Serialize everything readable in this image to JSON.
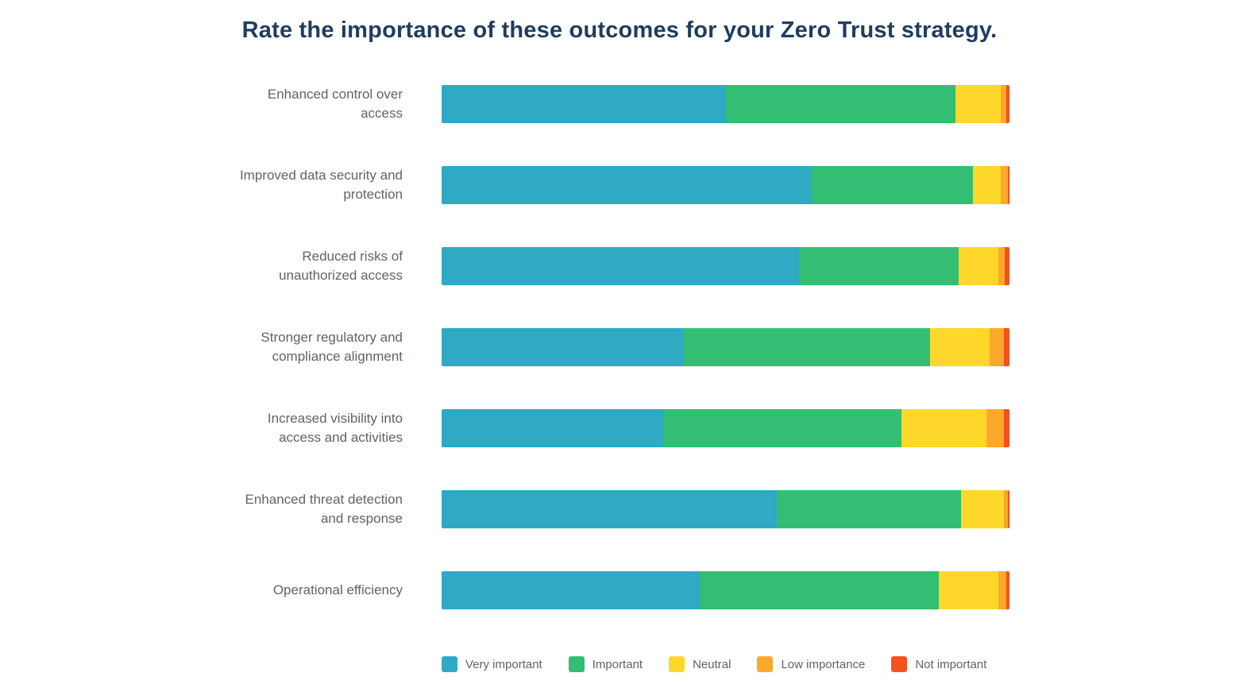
{
  "title": "Rate the importance of these outcomes for your Zero Trust strategy.",
  "chart_data": {
    "type": "bar",
    "variant": "horizontal-stacked",
    "unit": "percent-of-respondents",
    "title": "Rate the importance of these outcomes for your Zero Trust strategy.",
    "categories": [
      "Enhanced control over access",
      "Improved data security and protection",
      "Reduced risks of unauthorized access",
      "Stronger regulatory and compliance alignment",
      "Increased visibility into access and activities",
      "Enhanced threat detection and response",
      "Operational efficiency"
    ],
    "series": [
      {
        "name": "Very important",
        "color": "#2fa9c4",
        "values": [
          50,
          65,
          63,
          42.5,
          39,
          59,
          45.5
        ]
      },
      {
        "name": "Important",
        "color": "#33be74",
        "values": [
          40.5,
          28.5,
          28,
          43.5,
          42,
          32.5,
          42
        ]
      },
      {
        "name": "Neutral",
        "color": "#fdd82a",
        "values": [
          8,
          5,
          7,
          10.5,
          15,
          7.5,
          10.5
        ]
      },
      {
        "name": "Low importance",
        "color": "#fba82b",
        "values": [
          1,
          1.2,
          1.2,
          2.5,
          3,
          0.7,
          1.5
        ]
      },
      {
        "name": "Not important",
        "color": "#f4511e",
        "values": [
          0.5,
          0.3,
          0.8,
          1,
          1,
          0.3,
          0.5
        ]
      }
    ],
    "xlim": [
      0,
      100
    ],
    "grid": false,
    "axis_tick_labels_visible": false,
    "legend_position": "bottom"
  },
  "colors": {
    "title": "#1e3d5f",
    "category_label": "#5f6368",
    "legend_label": "#5f6368",
    "background": "#ffffff"
  }
}
